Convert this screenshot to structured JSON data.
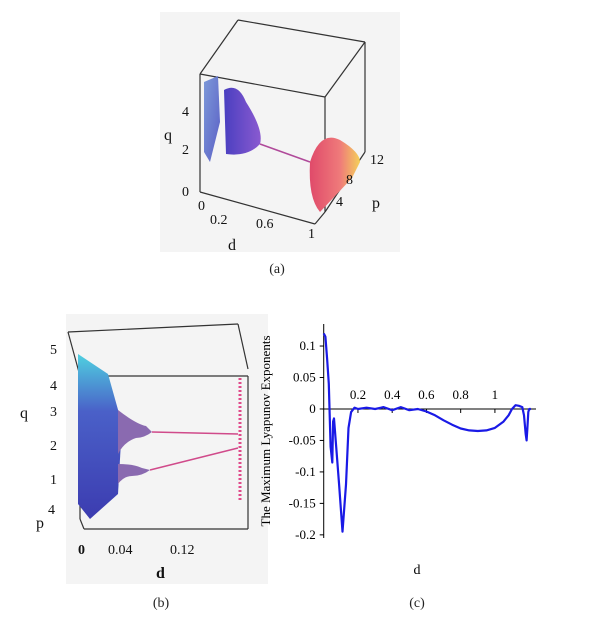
{
  "captions": {
    "a": "(a)",
    "b": "(b)",
    "c": "(c)"
  },
  "chart_data": [
    {
      "id": "a",
      "type": "scatter",
      "axes3d": {
        "q": {
          "label": "q",
          "ticks": [
            "0",
            "2",
            "4"
          ]
        },
        "d": {
          "label": "d",
          "ticks": [
            "0",
            "0.2",
            "0.6",
            "1"
          ]
        },
        "p": {
          "label": "p",
          "ticks": [
            "4",
            "8",
            "12"
          ]
        }
      }
    },
    {
      "id": "b",
      "type": "scatter",
      "axes3d": {
        "q": {
          "label": "q",
          "ticks": [
            "1",
            "2",
            "3",
            "4",
            "5"
          ]
        },
        "d": {
          "label": "d",
          "ticks": [
            "0",
            "0.04",
            "0.12"
          ]
        },
        "p": {
          "label": "p",
          "ticks": [
            "4"
          ]
        }
      }
    },
    {
      "id": "c",
      "type": "line",
      "xlabel": "d",
      "ylabel": "The Maximum Lyapunov Exponents",
      "xlim": [
        -0.01,
        1.24
      ],
      "ylim": [
        -0.205,
        0.135
      ],
      "xticks": [
        0.2,
        0.4,
        0.6,
        0.8,
        1
      ],
      "xtick_labels": [
        "0.2",
        "0.4",
        "0.6",
        "0.8",
        "1"
      ],
      "yticks": [
        0.1,
        0.05,
        0,
        -0.05,
        -0.1,
        -0.15,
        -0.2
      ],
      "ytick_labels": [
        "0.1",
        "0.05",
        "0",
        "-0.05",
        "-0.1",
        "-0.15",
        "-0.2"
      ],
      "series": [
        {
          "color": "#1a1ae6",
          "x": [
            0.0,
            0.01,
            0.02,
            0.03,
            0.04,
            0.05,
            0.055,
            0.06,
            0.07,
            0.09,
            0.11,
            0.13,
            0.145,
            0.16,
            0.18,
            0.2,
            0.25,
            0.3,
            0.35,
            0.4,
            0.45,
            0.5,
            0.55,
            0.6,
            0.65,
            0.7,
            0.75,
            0.8,
            0.85,
            0.9,
            0.95,
            1.0,
            1.05,
            1.08,
            1.1,
            1.12,
            1.14,
            1.16,
            1.17,
            1.18,
            1.185,
            1.19,
            1.195,
            1.2,
            1.21
          ],
          "y": [
            0.12,
            0.115,
            0.08,
            0.04,
            -0.06,
            -0.085,
            -0.02,
            -0.015,
            -0.05,
            -0.12,
            -0.195,
            -0.12,
            -0.03,
            -0.005,
            0.002,
            0.0,
            0.002,
            0.0,
            0.003,
            -0.002,
            0.003,
            -0.002,
            0.0,
            -0.004,
            -0.01,
            -0.018,
            -0.025,
            -0.031,
            -0.034,
            -0.035,
            -0.034,
            -0.03,
            -0.02,
            -0.01,
            0.0,
            0.006,
            0.005,
            0.003,
            -0.01,
            -0.04,
            -0.05,
            -0.03,
            -0.005,
            0.0,
            0.0
          ]
        }
      ]
    }
  ]
}
